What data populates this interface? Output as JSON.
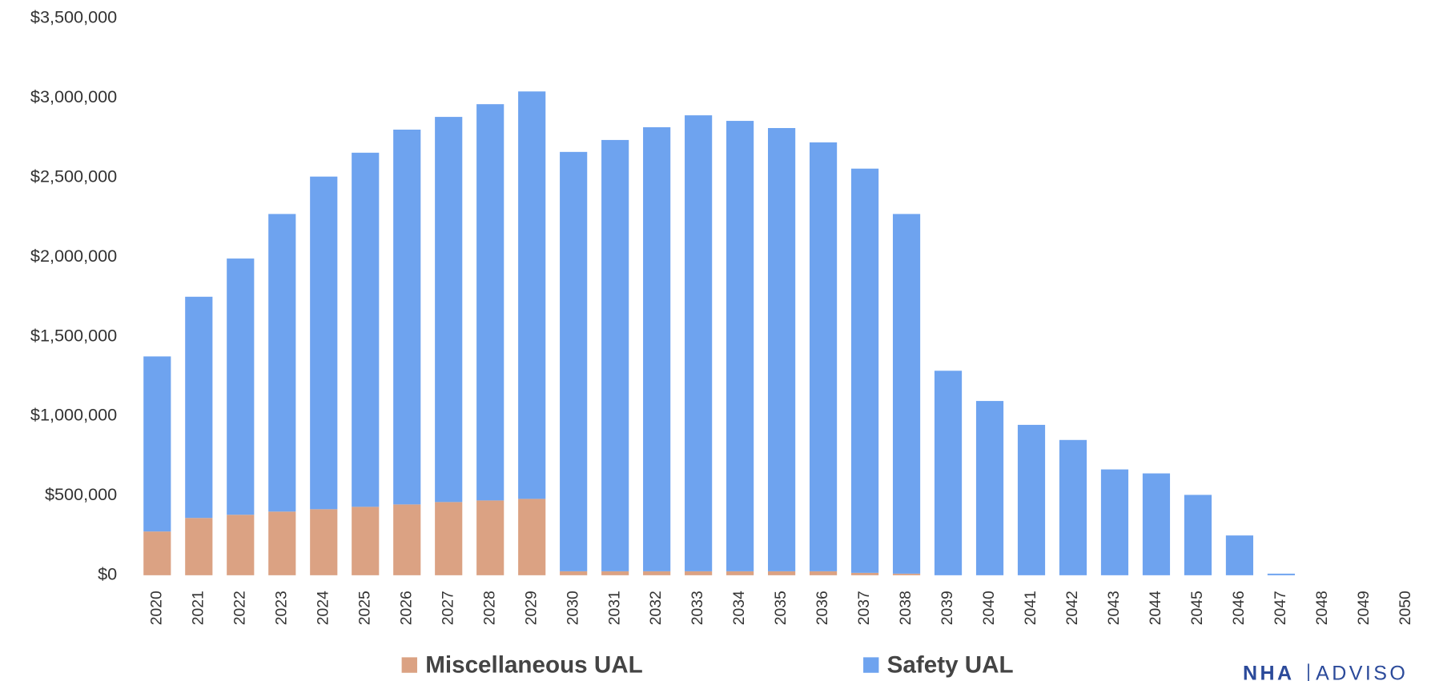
{
  "chart_data": {
    "type": "stacked_bar",
    "categories": [
      "2020",
      "2021",
      "2022",
      "2023",
      "2024",
      "2025",
      "2026",
      "2027",
      "2028",
      "2029",
      "2030",
      "2031",
      "2032",
      "2033",
      "2034",
      "2035",
      "2036",
      "2037",
      "2038",
      "2039",
      "2040",
      "2041",
      "2042",
      "2043",
      "2044",
      "2045",
      "2046",
      "2047",
      "2048",
      "2049",
      "2050"
    ],
    "series": [
      {
        "name": "Miscellaneous UAL",
        "color": "#dba283",
        "values": [
          275000,
          360000,
          380000,
          400000,
          415000,
          430000,
          445000,
          460000,
          470000,
          480000,
          25000,
          25000,
          25000,
          25000,
          25000,
          25000,
          25000,
          15000,
          10000,
          0,
          0,
          0,
          0,
          0,
          0,
          0,
          0,
          0,
          0,
          0,
          0
        ]
      },
      {
        "name": "Safety UAL",
        "color": "#6ea3ef",
        "values": [
          1100000,
          1390000,
          1610000,
          1870000,
          2090000,
          2225000,
          2355000,
          2420000,
          2490000,
          2560000,
          2635000,
          2710000,
          2790000,
          2865000,
          2830000,
          2785000,
          2695000,
          2540000,
          2260000,
          1285000,
          1095000,
          945000,
          850000,
          665000,
          640000,
          505000,
          250000,
          10000,
          0,
          0,
          0
        ]
      }
    ],
    "ylim": [
      0,
      3500000
    ],
    "yticks": [
      {
        "value": 0,
        "label": "$0"
      },
      {
        "value": 500000,
        "label": "$500,000"
      },
      {
        "value": 1000000,
        "label": "$1,000,000"
      },
      {
        "value": 1500000,
        "label": "$1,500,000"
      },
      {
        "value": 2000000,
        "label": "$2,000,000"
      },
      {
        "value": 2500000,
        "label": "$2,500,000"
      },
      {
        "value": 3000000,
        "label": "$3,000,000"
      },
      {
        "value": 3500000,
        "label": "$3,500,000"
      }
    ],
    "grid": false,
    "legend": "bottom"
  },
  "footer": {
    "brand": "NHA",
    "brand_sub": "ADVISO"
  }
}
